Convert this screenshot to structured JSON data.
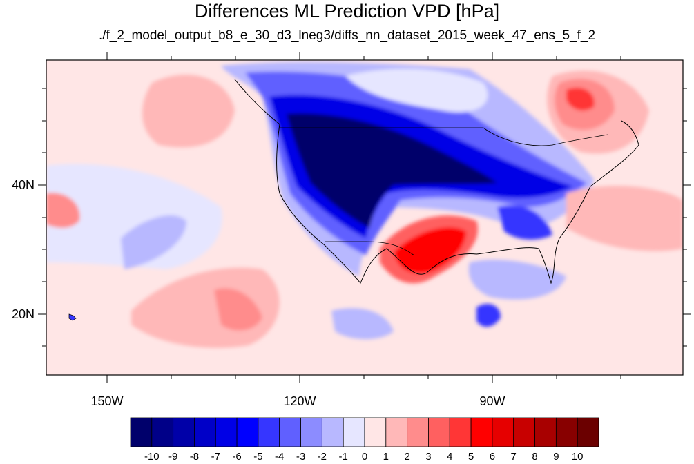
{
  "title": "Differences ML Prediction VPD [hPa]",
  "subtitle": "./f_2_model_output_b8_e_30_d3_lneg3/diffs_nn_dataset_2015_week_47_ens_5_f_2",
  "lat_labels": [
    "40N",
    "20N"
  ],
  "lon_labels": [
    "150W",
    "120W",
    "90W"
  ],
  "colorbar": {
    "labels": [
      "-10",
      "-9",
      "-8",
      "-7",
      "-6",
      "-5",
      "-4",
      "-3",
      "-2",
      "-1",
      "0",
      "1",
      "2",
      "3",
      "4",
      "5",
      "6",
      "7",
      "8",
      "9",
      "10"
    ],
    "colors": [
      "#00006b",
      "#000088",
      "#0000a8",
      "#0000c8",
      "#0000e6",
      "#0000ff",
      "#3636ff",
      "#6060ff",
      "#8c8cff",
      "#b8b8ff",
      "#e6e6ff",
      "#ffe6e6",
      "#ffb8b8",
      "#ff8c8c",
      "#ff6060",
      "#ff3636",
      "#ff0000",
      "#e60000",
      "#c80000",
      "#a80000",
      "#880000",
      "#6b0000"
    ]
  }
}
